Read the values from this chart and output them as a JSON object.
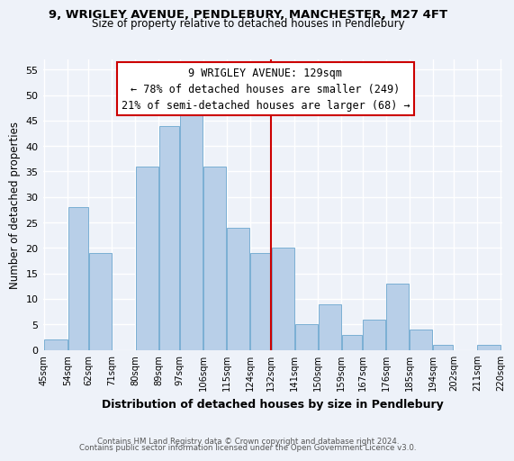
{
  "title1": "9, WRIGLEY AVENUE, PENDLEBURY, MANCHESTER, M27 4FT",
  "title2": "Size of property relative to detached houses in Pendlebury",
  "xlabel": "Distribution of detached houses by size in Pendlebury",
  "ylabel": "Number of detached properties",
  "footer1": "Contains HM Land Registry data © Crown copyright and database right 2024.",
  "footer2": "Contains public sector information licensed under the Open Government Licence v3.0.",
  "annotation_line1": "9 WRIGLEY AVENUE: 129sqm",
  "annotation_line2": "← 78% of detached houses are smaller (249)",
  "annotation_line3": "21% of semi-detached houses are larger (68) →",
  "bar_left_edges": [
    45,
    54,
    62,
    71,
    80,
    89,
    97,
    106,
    115,
    124,
    132,
    141,
    150,
    159,
    167,
    176,
    185,
    194,
    202,
    211
  ],
  "bar_widths": [
    9,
    8,
    9,
    9,
    9,
    8,
    9,
    9,
    9,
    8,
    9,
    9,
    9,
    8,
    9,
    9,
    9,
    8,
    9,
    9
  ],
  "bar_heights": [
    2,
    28,
    19,
    0,
    36,
    44,
    46,
    36,
    24,
    19,
    20,
    5,
    9,
    3,
    6,
    13,
    4,
    1,
    0,
    1
  ],
  "bar_color": "#b8cfe8",
  "bar_edge_color": "#7aafd4",
  "reference_line_x": 132,
  "reference_line_color": "#cc0000",
  "annotation_box_edge_color": "#cc0000",
  "ylim": [
    0,
    57
  ],
  "yticks": [
    0,
    5,
    10,
    15,
    20,
    25,
    30,
    35,
    40,
    45,
    50,
    55
  ],
  "tick_labels": [
    "45sqm",
    "54sqm",
    "62sqm",
    "71sqm",
    "80sqm",
    "89sqm",
    "97sqm",
    "106sqm",
    "115sqm",
    "124sqm",
    "132sqm",
    "141sqm",
    "150sqm",
    "159sqm",
    "167sqm",
    "176sqm",
    "185sqm",
    "194sqm",
    "202sqm",
    "211sqm",
    "220sqm"
  ],
  "background_color": "#eef2f9",
  "grid_color": "#ffffff",
  "title_fontsize": 9.5,
  "subtitle_fontsize": 8.5
}
